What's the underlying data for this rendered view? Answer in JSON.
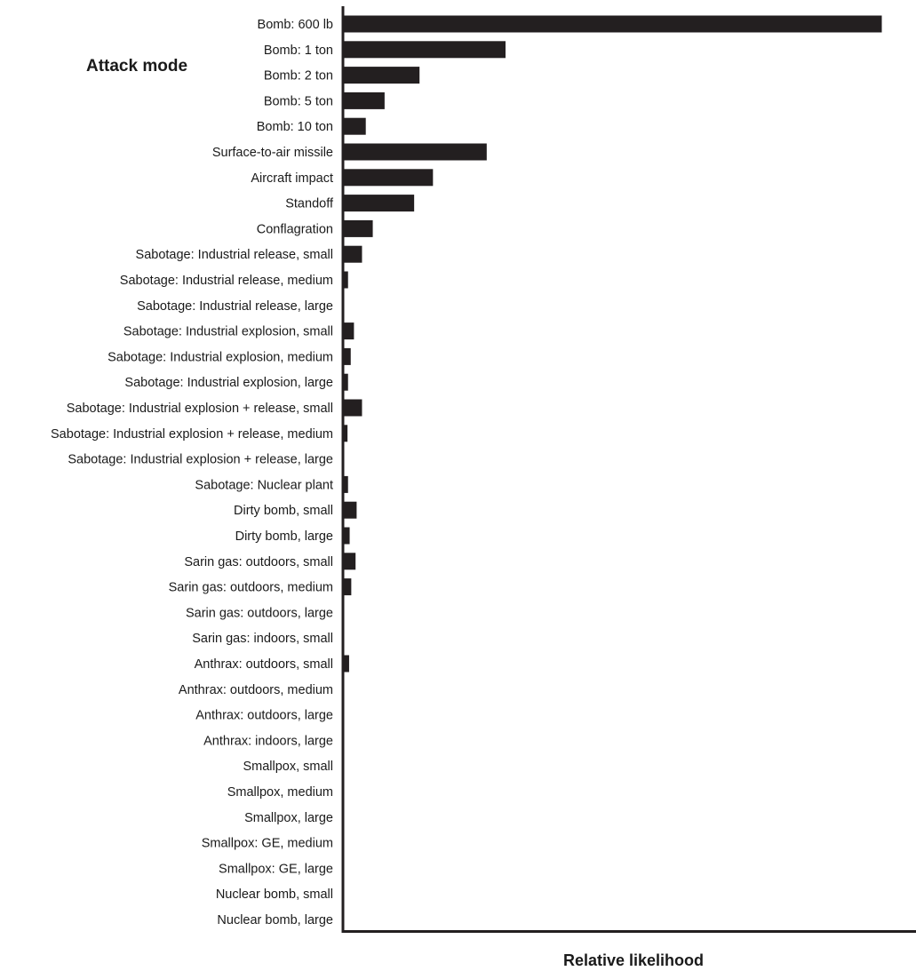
{
  "chart_data": {
    "type": "bar",
    "orientation": "horizontal",
    "title": "Attack mode",
    "xlabel": "Relative likelihood",
    "ylabel": "",
    "xlim": [
      0,
      107
    ],
    "grid": false,
    "legend": "none",
    "bar_color": "#231f20",
    "categories": [
      "Bomb: 600 lb",
      "Bomb: 1 ton",
      "Bomb: 2 ton",
      "Bomb: 5 ton",
      "Bomb: 10 ton",
      "Surface-to-air missile",
      "Aircraft impact",
      "Standoff",
      "Conflagration",
      "Sabotage: Industrial release, small",
      "Sabotage: Industrial release, medium",
      "Sabotage: Industrial release, large",
      "Sabotage: Industrial explosion, small",
      "Sabotage: Industrial explosion, medium",
      "Sabotage: Industrial explosion, large",
      "Sabotage: Industrial explosion + release, small",
      "Sabotage: Industrial explosion + release, medium",
      "Sabotage: Industrial explosion + release, large",
      "Sabotage: Nuclear plant",
      "Dirty bomb, small",
      "Dirty bomb, large",
      "Sarin gas: outdoors, small",
      "Sarin gas: outdoors, medium",
      "Sarin gas: outdoors, large",
      "Sarin gas: indoors, small",
      "Anthrax: outdoors, small",
      "Anthrax: outdoors, medium",
      "Anthrax: outdoors, large",
      "Anthrax: indoors, large",
      "Smallpox, small",
      "Smallpox, medium",
      "Smallpox, large",
      "Smallpox: GE, medium",
      "Smallpox: GE, large",
      "Nuclear bomb, small",
      "Nuclear bomb, large"
    ],
    "values": [
      100,
      30,
      14,
      7.5,
      4,
      26.5,
      16.5,
      13,
      5.3,
      3.3,
      0.7,
      0,
      1.8,
      1.2,
      0.7,
      3.3,
      0.6,
      0,
      0.7,
      2.3,
      1,
      2.1,
      1.3,
      0,
      0,
      0.9,
      0,
      0,
      0,
      0,
      0,
      0,
      0,
      0,
      0,
      0
    ]
  }
}
